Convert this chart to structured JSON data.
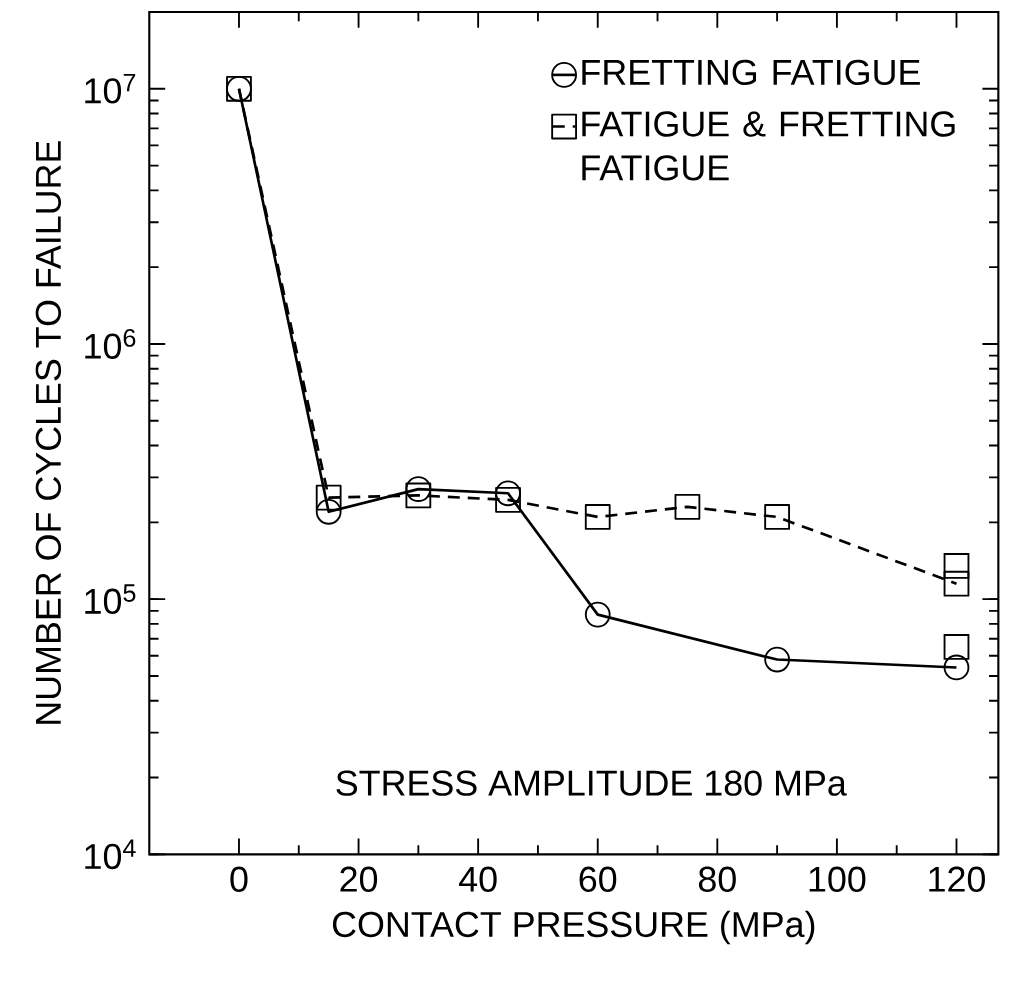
{
  "chart_data": {
    "type": "line",
    "xlabel": "CONTACT PRESSURE    (MPa)",
    "ylabel": "NUMBER OF CYCLES TO FAILURE",
    "log": "y",
    "xlim": [
      -15,
      127
    ],
    "ylim": [
      10000,
      20000000
    ],
    "xticks": [
      0,
      20,
      40,
      60,
      80,
      100,
      120
    ],
    "yticks": [
      {
        "value": 10000,
        "label": "10$^{4}$"
      },
      {
        "value": 100000,
        "label": "10$^{5}$"
      },
      {
        "value": 1000000,
        "label": "10$^{6}$"
      },
      {
        "value": 10000000,
        "label": "10$^{7}$"
      }
    ],
    "legend": "top right",
    "grid": false,
    "annotations": [
      "STRESS AMPLITUDE  180 MPa"
    ],
    "series": [
      {
        "name": "FRETTING FATIGUE",
        "color": "#000000",
        "marker": "circle",
        "line_style": "solid",
        "x": [
          0,
          15,
          30,
          45,
          60,
          90,
          120
        ],
        "values": [
          10000000,
          220000,
          270000,
          260000,
          87000,
          58000,
          54000
        ]
      },
      {
        "name": "FATIGUE & FRETTING FATIGUE",
        "color": "#000000",
        "marker": "square",
        "line_style": "dashed",
        "x": [
          0,
          15,
          30,
          45,
          60,
          75,
          90,
          120
        ],
        "values": [
          10000000,
          250000,
          255000,
          245000,
          210000,
          230000,
          210000,
          115000
        ]
      },
      {
        "type": "scatter",
        "color": "#000000",
        "marker": "square",
        "x": [
          120,
          120
        ],
        "values": [
          135000,
          65000
        ]
      }
    ]
  }
}
